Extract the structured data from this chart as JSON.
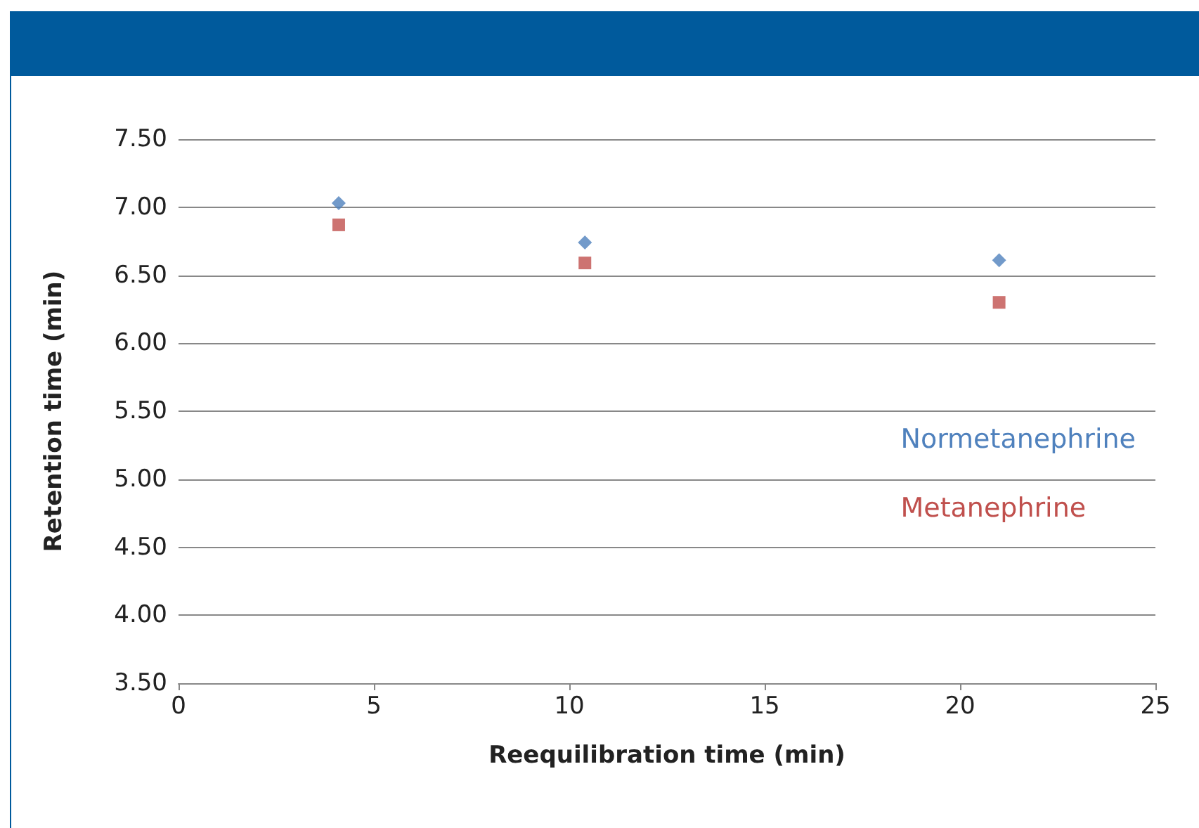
{
  "chart_data": {
    "type": "scatter",
    "xlabel": "Reequilibration time (min)",
    "ylabel": "Retention time (min)",
    "xlim": [
      0,
      25
    ],
    "xticks": [
      0,
      5,
      10,
      15,
      20,
      25
    ],
    "ylim": [
      3.5,
      7.5
    ],
    "yticks": [
      {
        "value": 3.5,
        "label": "3.50"
      },
      {
        "value": 4,
        "label": "4.00"
      },
      {
        "value": 4.5,
        "label": "4.50"
      },
      {
        "value": 5,
        "label": "5.00"
      },
      {
        "value": 5.5,
        "label": "5.50"
      },
      {
        "value": 6,
        "label": "6.00"
      },
      {
        "value": 6.5,
        "label": "6.50"
      },
      {
        "value": 7,
        "label": "7.00"
      },
      {
        "value": 7.5,
        "label": "7.50"
      }
    ],
    "grid": "y",
    "legend": "right",
    "series": [
      {
        "name": "Normetanephrine",
        "color": "#4f81bd",
        "marker": "diamond",
        "x": [
          4.1,
          10.4,
          21
        ],
        "values": [
          7.03,
          6.74,
          6.61
        ]
      },
      {
        "name": "Metanephrine",
        "color": "#c0504d",
        "marker": "square",
        "x": [
          4.1,
          10.4,
          21
        ],
        "values": [
          6.87,
          6.59,
          6.3
        ]
      }
    ]
  }
}
